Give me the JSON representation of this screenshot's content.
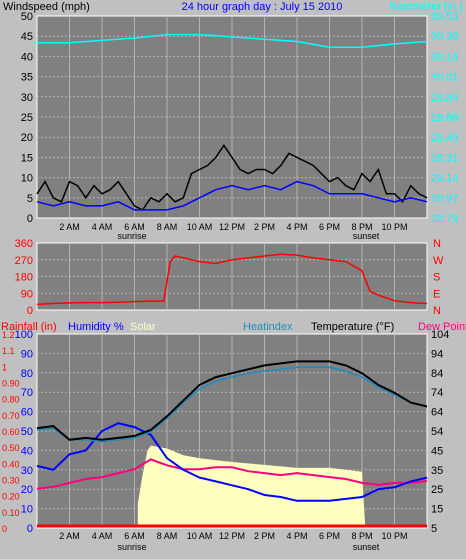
{
  "header": {
    "left_label": "Windspeed (mph)",
    "title": "24 hour graph day : July 15 2010",
    "right_label": "Barometer (in.)"
  },
  "labels": {
    "sunrise": "sunrise",
    "sunset": "sunset",
    "rain_label": "Rainfall (in)",
    "humidity_label": "Humidity %",
    "solar_label": "Solar",
    "heatindex_label": "Heatindex",
    "temperature_label": "Temperature (°F)",
    "dewpoint_label": "Dew Point"
  },
  "colors": {
    "background": "#c0c0c0",
    "plot": "#808080",
    "grid": "#b4b4b4",
    "wind": "#000000",
    "wind_avg": "#0000ff",
    "barometer": "#00ffff",
    "direction": "#ff0000",
    "temperature": "#000000",
    "heatindex": "#1e8cbe",
    "humidity": "#0000ff",
    "dewpoint": "#ff0080",
    "solar": "#ffffc0",
    "rain": "#ff0000",
    "text_blue": "#0000ff",
    "text_red": "#ff0000",
    "text_cyan": "#00ffff"
  },
  "chart_data": [
    {
      "type": "line",
      "title": "24 hour graph day : July 15 2010",
      "x_ticks": [
        "2 AM",
        "4 AM",
        "6 AM",
        "8 AM",
        "10 AM",
        "12 PM",
        "2 PM",
        "4 PM",
        "6 PM",
        "8 PM",
        "10 PM"
      ],
      "x_unit": "hour",
      "xlim": [
        0,
        24
      ],
      "y_left": {
        "label": "Windspeed (mph)",
        "ticks": [
          "0",
          "5",
          "10",
          "15",
          "20",
          "25",
          "30",
          "35",
          "40",
          "45",
          "50"
        ],
        "ylim": [
          0,
          50
        ]
      },
      "y_right": {
        "label": "Barometer (in.)",
        "ticks": [
          "28.79",
          "28.97",
          "29.14",
          "29.31",
          "29.49",
          "29.66",
          "29.84",
          "30.01",
          "30.18",
          "30.36",
          "30.53"
        ],
        "ylim": [
          28.79,
          30.53
        ]
      },
      "grid": true,
      "series": [
        {
          "name": "Windspeed (mph)",
          "axis": "left",
          "x": [
            0,
            0.5,
            1,
            1.5,
            2,
            2.5,
            3,
            3.5,
            4,
            4.5,
            5,
            5.5,
            6,
            6.5,
            7,
            7.5,
            8,
            8.5,
            9,
            9.5,
            10,
            10.5,
            11,
            11.5,
            12,
            12.5,
            13,
            13.5,
            14,
            14.5,
            15,
            15.5,
            16,
            16.5,
            17,
            17.5,
            18,
            18.5,
            19,
            19.5,
            20,
            20.5,
            21,
            21.5,
            22,
            22.5,
            23,
            23.5,
            24
          ],
          "values": [
            6,
            9,
            5,
            4,
            9,
            8,
            5,
            8,
            6,
            7,
            9,
            6,
            3,
            2,
            5,
            4,
            6,
            4,
            5,
            11,
            12,
            13,
            15,
            18,
            15,
            12,
            11,
            12,
            12,
            11,
            13,
            16,
            15,
            14,
            13,
            11,
            9,
            10,
            8,
            7,
            11,
            9,
            12,
            6,
            6,
            4,
            8,
            6,
            5
          ]
        },
        {
          "name": "Wind average",
          "axis": "left",
          "x": [
            0,
            1,
            2,
            3,
            4,
            5,
            6,
            7,
            8,
            9,
            10,
            11,
            12,
            13,
            14,
            15,
            16,
            17,
            18,
            19,
            20,
            21,
            22,
            23,
            24
          ],
          "values": [
            4,
            3,
            4,
            3,
            3,
            4,
            2,
            2,
            2,
            3,
            5,
            7,
            8,
            7,
            8,
            7,
            9,
            8,
            6,
            6,
            6,
            5,
            4,
            5,
            4
          ]
        },
        {
          "name": "Barometer (in.)",
          "axis": "right",
          "x": [
            0,
            2,
            4,
            6,
            8,
            10,
            12,
            14,
            16,
            18,
            20,
            22,
            24
          ],
          "values": [
            30.3,
            30.3,
            30.32,
            30.34,
            30.37,
            30.37,
            30.35,
            30.33,
            30.31,
            30.26,
            30.26,
            30.29,
            30.31
          ]
        }
      ]
    },
    {
      "type": "line",
      "x_ticks": [],
      "xlim": [
        0,
        24
      ],
      "y_left": {
        "ticks": [
          "360",
          "270",
          "180",
          "90",
          "0"
        ],
        "ylim": [
          0,
          360
        ]
      },
      "y_right": {
        "ticks": [
          "N",
          "W",
          "S",
          "E",
          "N"
        ]
      },
      "series": [
        {
          "name": "Wind direction",
          "x": [
            0,
            1,
            2,
            3,
            4,
            5,
            6,
            7,
            7.8,
            8.2,
            8.5,
            9,
            10,
            11,
            12,
            13,
            14,
            15,
            16,
            17,
            18,
            19,
            20,
            20.5,
            21,
            22,
            23,
            24
          ],
          "values": [
            30,
            35,
            38,
            40,
            40,
            42,
            45,
            48,
            48,
            260,
            290,
            280,
            260,
            250,
            270,
            280,
            290,
            300,
            295,
            280,
            270,
            260,
            210,
            100,
            80,
            50,
            40,
            35
          ]
        }
      ]
    },
    {
      "type": "line",
      "x_ticks": [
        "2 AM",
        "4 AM",
        "6 AM",
        "8 AM",
        "10 AM",
        "12 PM",
        "2 PM",
        "4 PM",
        "6 PM",
        "8 PM",
        "10 PM"
      ],
      "xlim": [
        0,
        24
      ],
      "y_left_outer": {
        "label": "Rainfall (in)",
        "ticks": [
          "1.2",
          "1.1",
          "1",
          "0.90",
          "0.80",
          "0.70",
          "0.60",
          "0.50",
          "0.40",
          "0.30",
          "0.20",
          "0.10",
          "0"
        ]
      },
      "y_left": {
        "label": "Humidity %",
        "ticks": [
          "100",
          "90",
          "80",
          "70",
          "60",
          "50",
          "40",
          "30",
          "20",
          "10",
          "0"
        ],
        "ylim": [
          0,
          100
        ]
      },
      "y_right": {
        "label": "Temperature (°F)",
        "ticks": [
          "104",
          "94",
          "84",
          "74",
          "64",
          "54",
          "45",
          "35",
          "25",
          "15",
          "5"
        ],
        "ylim": [
          5,
          104
        ]
      },
      "grid": true,
      "series": [
        {
          "name": "Temperature (°F)",
          "axis": "right",
          "x": [
            0,
            1,
            2,
            3,
            4,
            5,
            6,
            7,
            8,
            9,
            10,
            11,
            12,
            13,
            14,
            15,
            16,
            17,
            18,
            19,
            20,
            21,
            22,
            23,
            24
          ],
          "values": [
            56,
            57,
            50,
            51,
            50,
            51,
            52,
            55,
            62,
            70,
            78,
            82,
            84,
            86,
            88,
            89,
            90,
            90,
            90,
            88,
            84,
            78,
            74,
            69,
            67
          ]
        },
        {
          "name": "Heatindex",
          "axis": "right",
          "x": [
            0,
            1,
            2,
            3,
            4,
            5,
            6,
            7,
            8,
            9,
            10,
            11,
            12,
            13,
            14,
            15,
            16,
            17,
            18,
            19,
            20,
            21,
            22,
            23,
            24
          ],
          "values": [
            55,
            56,
            50,
            50,
            49,
            50,
            51,
            54,
            61,
            69,
            76,
            80,
            82,
            84,
            85,
            86,
            87,
            87,
            87,
            85,
            82,
            77,
            73,
            69,
            67
          ]
        },
        {
          "name": "Humidity %",
          "axis": "left",
          "x": [
            0,
            1,
            2,
            3,
            4,
            5,
            6,
            7,
            8,
            9,
            10,
            11,
            12,
            13,
            14,
            15,
            16,
            17,
            18,
            19,
            20,
            21,
            22,
            23,
            24
          ],
          "values": [
            32,
            30,
            38,
            40,
            50,
            54,
            52,
            48,
            36,
            30,
            26,
            24,
            22,
            20,
            17,
            16,
            14,
            14,
            14,
            15,
            16,
            20,
            21,
            24,
            26
          ]
        },
        {
          "name": "Dew Point",
          "axis": "right",
          "x": [
            0,
            1,
            2,
            3,
            4,
            5,
            6,
            7,
            8,
            9,
            10,
            11,
            12,
            13,
            14,
            15,
            16,
            17,
            18,
            19,
            20,
            21,
            22,
            23,
            24
          ],
          "values": [
            25,
            26,
            28,
            30,
            31,
            33,
            35,
            40,
            37,
            35,
            35,
            36,
            36,
            34,
            33,
            32,
            33,
            32,
            31,
            30,
            28,
            27,
            28,
            28,
            29
          ]
        },
        {
          "name": "Solar",
          "x": [
            6.2,
            6.5,
            6.8,
            7,
            8,
            9,
            10,
            12,
            14,
            16,
            17,
            18,
            19,
            20,
            20.2
          ],
          "values_percent": [
            25,
            55,
            80,
            85,
            82,
            75,
            72,
            68,
            65,
            62,
            62,
            62,
            60,
            58,
            0
          ]
        },
        {
          "name": "Rainfall (in)",
          "axis": "left_outer",
          "x": [
            0,
            24
          ],
          "values": [
            0,
            0
          ]
        }
      ]
    }
  ]
}
